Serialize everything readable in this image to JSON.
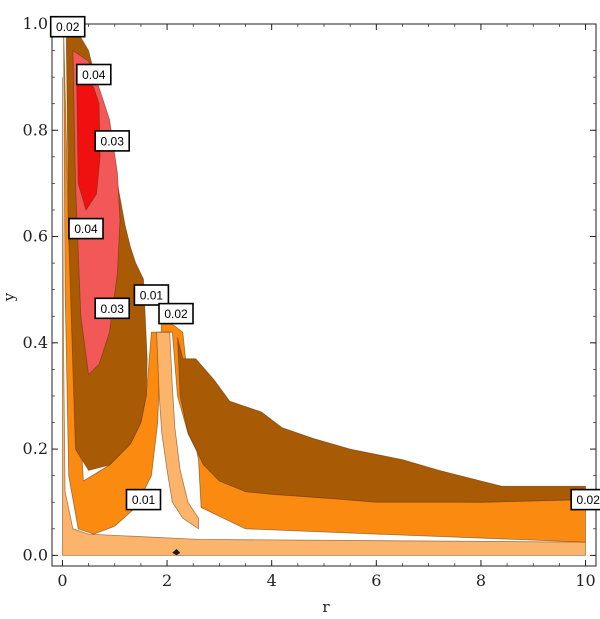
{
  "chart_data": {
    "type": "contour",
    "xlabel": "r",
    "ylabel": "y",
    "xlim": [
      -0.2,
      10.2
    ],
    "ylim": [
      -0.02,
      1.0
    ],
    "xticks": [
      0,
      2,
      4,
      6,
      8,
      10
    ],
    "yticks": [
      0.0,
      0.2,
      0.4,
      0.6,
      0.8,
      1.0
    ],
    "xtick_labels": [
      "0",
      "2",
      "4",
      "6",
      "8",
      "10"
    ],
    "ytick_labels": [
      "0.0",
      "0.2",
      "0.4",
      "0.6",
      "0.8",
      "1.0"
    ],
    "levels": [
      0.01,
      0.02,
      0.03,
      0.04
    ],
    "colors": {
      "lt_0.01": "#fcb36a",
      "0.01_0.02": "#fb8a10",
      "0.02_0.03": "#a95a05",
      "0.03_0.04": "#f25858",
      "gt_0.04": "#f01010",
      "dark_blob": "#1a1a1a",
      "frame": "#222222"
    },
    "regions": [
      {
        "level": "lt_0.01",
        "polygon": [
          [
            0,
            0
          ],
          [
            10,
            0
          ],
          [
            10,
            0.025
          ],
          [
            2.6,
            0.03
          ],
          [
            0.5,
            0.04
          ],
          [
            0.2,
            0.05
          ],
          [
            0.05,
            0.12
          ],
          [
            0.02,
            0.4
          ],
          [
            0,
            0.9
          ]
        ]
      },
      {
        "level": "0.01_0.02",
        "polygon": [
          [
            0.02,
            1.0
          ],
          [
            0.05,
            0.5
          ],
          [
            0.12,
            0.15
          ],
          [
            0.3,
            0.05
          ],
          [
            0.6,
            0.04
          ],
          [
            1.0,
            0.055
          ],
          [
            1.4,
            0.09
          ],
          [
            1.7,
            0.15
          ],
          [
            1.82,
            0.25
          ],
          [
            1.9,
            0.45
          ],
          [
            2.3,
            0.42
          ],
          [
            2.5,
            0.23
          ],
          [
            2.6,
            0.18
          ],
          [
            2.65,
            0.09
          ],
          [
            3.5,
            0.05
          ],
          [
            6.0,
            0.04
          ],
          [
            10,
            0.025
          ],
          [
            10,
            0.105
          ],
          [
            8.0,
            0.1
          ],
          [
            5.0,
            0.108
          ],
          [
            3.5,
            0.12
          ],
          [
            2.7,
            0.17
          ],
          [
            2.4,
            0.23
          ],
          [
            2.2,
            0.3
          ],
          [
            2.1,
            0.42
          ],
          [
            1.7,
            0.42
          ],
          [
            1.6,
            0.3
          ],
          [
            1.5,
            0.25
          ],
          [
            1.3,
            0.21
          ],
          [
            0.9,
            0.17
          ],
          [
            0.4,
            0.14
          ],
          [
            0.12,
            0.6
          ]
        ]
      },
      {
        "level": "lt_0.01",
        "polygon": [
          [
            1.8,
            0.42
          ],
          [
            1.85,
            0.3
          ],
          [
            1.9,
            0.23
          ],
          [
            2.0,
            0.16
          ],
          [
            2.1,
            0.1
          ],
          [
            2.3,
            0.07
          ],
          [
            2.6,
            0.05
          ],
          [
            2.6,
            0.07
          ],
          [
            2.4,
            0.1
          ],
          [
            2.25,
            0.16
          ],
          [
            2.15,
            0.24
          ],
          [
            2.1,
            0.32
          ],
          [
            2.05,
            0.42
          ]
        ]
      },
      {
        "level": "0.02_0.03",
        "polygon": [
          [
            0.07,
            1.0
          ],
          [
            0.12,
            0.6
          ],
          [
            0.25,
            0.2
          ],
          [
            0.5,
            0.16
          ],
          [
            0.9,
            0.17
          ],
          [
            1.3,
            0.21
          ],
          [
            1.5,
            0.25
          ],
          [
            1.6,
            0.3
          ],
          [
            1.62,
            0.37
          ],
          [
            1.55,
            0.52
          ],
          [
            1.4,
            0.55
          ],
          [
            1.3,
            0.58
          ],
          [
            1.2,
            0.62
          ],
          [
            1.05,
            0.7
          ],
          [
            0.85,
            0.74
          ],
          [
            0.7,
            0.87
          ],
          [
            0.5,
            0.95
          ],
          [
            0.2,
            1.0
          ]
        ]
      },
      {
        "level": "0.02_0.03",
        "polygon": [
          [
            2.2,
            0.41
          ],
          [
            2.3,
            0.37
          ],
          [
            2.55,
            0.37
          ],
          [
            2.9,
            0.33
          ],
          [
            3.2,
            0.29
          ],
          [
            3.8,
            0.27
          ],
          [
            4.2,
            0.24
          ],
          [
            4.8,
            0.22
          ],
          [
            5.5,
            0.2
          ],
          [
            6.5,
            0.18
          ],
          [
            7.2,
            0.16
          ],
          [
            8.0,
            0.14
          ],
          [
            8.4,
            0.13
          ],
          [
            10,
            0.13
          ],
          [
            10,
            0.105
          ],
          [
            8.0,
            0.1
          ],
          [
            6.0,
            0.1
          ],
          [
            5.0,
            0.108
          ],
          [
            4.0,
            0.115
          ],
          [
            3.5,
            0.12
          ],
          [
            3.0,
            0.14
          ],
          [
            2.7,
            0.17
          ],
          [
            2.4,
            0.23
          ],
          [
            2.25,
            0.3
          ]
        ]
      },
      {
        "level": "0.03_0.04",
        "polygon": [
          [
            0.2,
            0.95
          ],
          [
            0.25,
            0.7
          ],
          [
            0.35,
            0.45
          ],
          [
            0.5,
            0.34
          ],
          [
            0.7,
            0.36
          ],
          [
            0.9,
            0.42
          ],
          [
            1.05,
            0.53
          ],
          [
            1.1,
            0.63
          ],
          [
            1.05,
            0.72
          ],
          [
            0.9,
            0.82
          ],
          [
            0.7,
            0.88
          ],
          [
            0.5,
            0.93
          ]
        ]
      },
      {
        "level": "gt_0.04",
        "polygon": [
          [
            0.27,
            0.9
          ],
          [
            0.3,
            0.7
          ],
          [
            0.45,
            0.65
          ],
          [
            0.65,
            0.68
          ],
          [
            0.72,
            0.75
          ],
          [
            0.7,
            0.85
          ],
          [
            0.6,
            0.88
          ],
          [
            0.45,
            0.9
          ]
        ]
      },
      {
        "level": "dark_blob",
        "polygon": [
          [
            2.1,
            0.005
          ],
          [
            2.18,
            0.012
          ],
          [
            2.25,
            0.005
          ],
          [
            2.18,
            0.0
          ]
        ]
      }
    ],
    "contour_labels": [
      {
        "text": "0.02",
        "x": 0.1,
        "y": 0.995
      },
      {
        "text": "0.04",
        "x": 0.6,
        "y": 0.905
      },
      {
        "text": "0.03",
        "x": 0.95,
        "y": 0.78
      },
      {
        "text": "0.04",
        "x": 0.45,
        "y": 0.615
      },
      {
        "text": "0.01",
        "x": 1.7,
        "y": 0.49
      },
      {
        "text": "0.03",
        "x": 0.95,
        "y": 0.465
      },
      {
        "text": "0.02",
        "x": 2.17,
        "y": 0.455
      },
      {
        "text": "0.01",
        "x": 1.55,
        "y": 0.105
      },
      {
        "text": "0.02",
        "x": 10.05,
        "y": 0.105
      }
    ]
  }
}
